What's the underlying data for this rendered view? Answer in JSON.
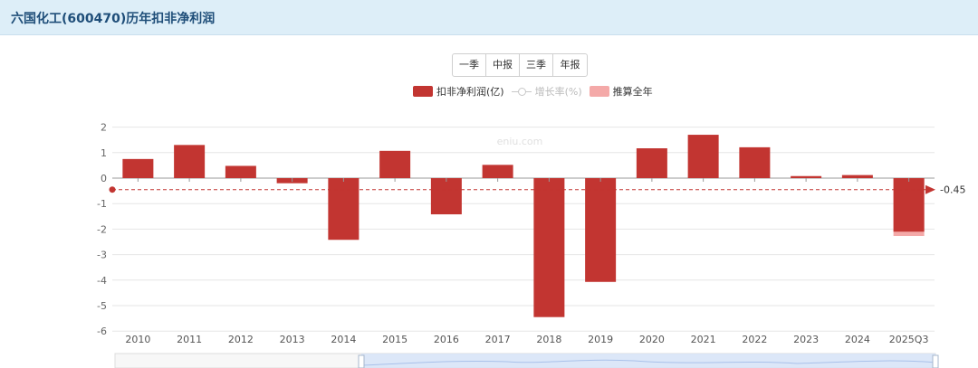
{
  "header": {
    "title": "六国化工(600470)历年扣非净利润"
  },
  "period_tabs": [
    "一季",
    "中报",
    "三季",
    "年报"
  ],
  "legend": {
    "bar": "扣非净利润(亿)",
    "line": "增长率(%)",
    "estimate": "推算全年"
  },
  "watermark": "eniu.com",
  "reference_line": {
    "value": -0.45,
    "label": "-0.45"
  },
  "colors": {
    "bar": "#c23531",
    "estimate": "#f4a9a8",
    "reference": "#c23531",
    "grid": "#e6e6e6"
  },
  "chart_data": {
    "type": "bar",
    "categories": [
      "2010",
      "2011",
      "2012",
      "2013",
      "2014",
      "2015",
      "2016",
      "2017",
      "2018",
      "2019",
      "2020",
      "2021",
      "2022",
      "2023",
      "2024",
      "2025Q3"
    ],
    "series": [
      {
        "name": "扣非净利润(亿)",
        "values": [
          0.75,
          1.3,
          0.48,
          -0.2,
          -2.42,
          1.07,
          -1.42,
          0.52,
          -5.45,
          -4.07,
          1.17,
          1.7,
          1.21,
          0.08,
          0.12,
          -2.1
        ]
      },
      {
        "name": "推算全年",
        "values": [
          null,
          null,
          null,
          null,
          null,
          null,
          null,
          null,
          null,
          null,
          null,
          null,
          null,
          null,
          null,
          -2.27
        ]
      }
    ],
    "ylim": [
      -6,
      2
    ],
    "yticks": [
      2,
      1,
      0,
      -1,
      -2,
      -3,
      -4,
      -5,
      -6
    ],
    "grid": true
  }
}
